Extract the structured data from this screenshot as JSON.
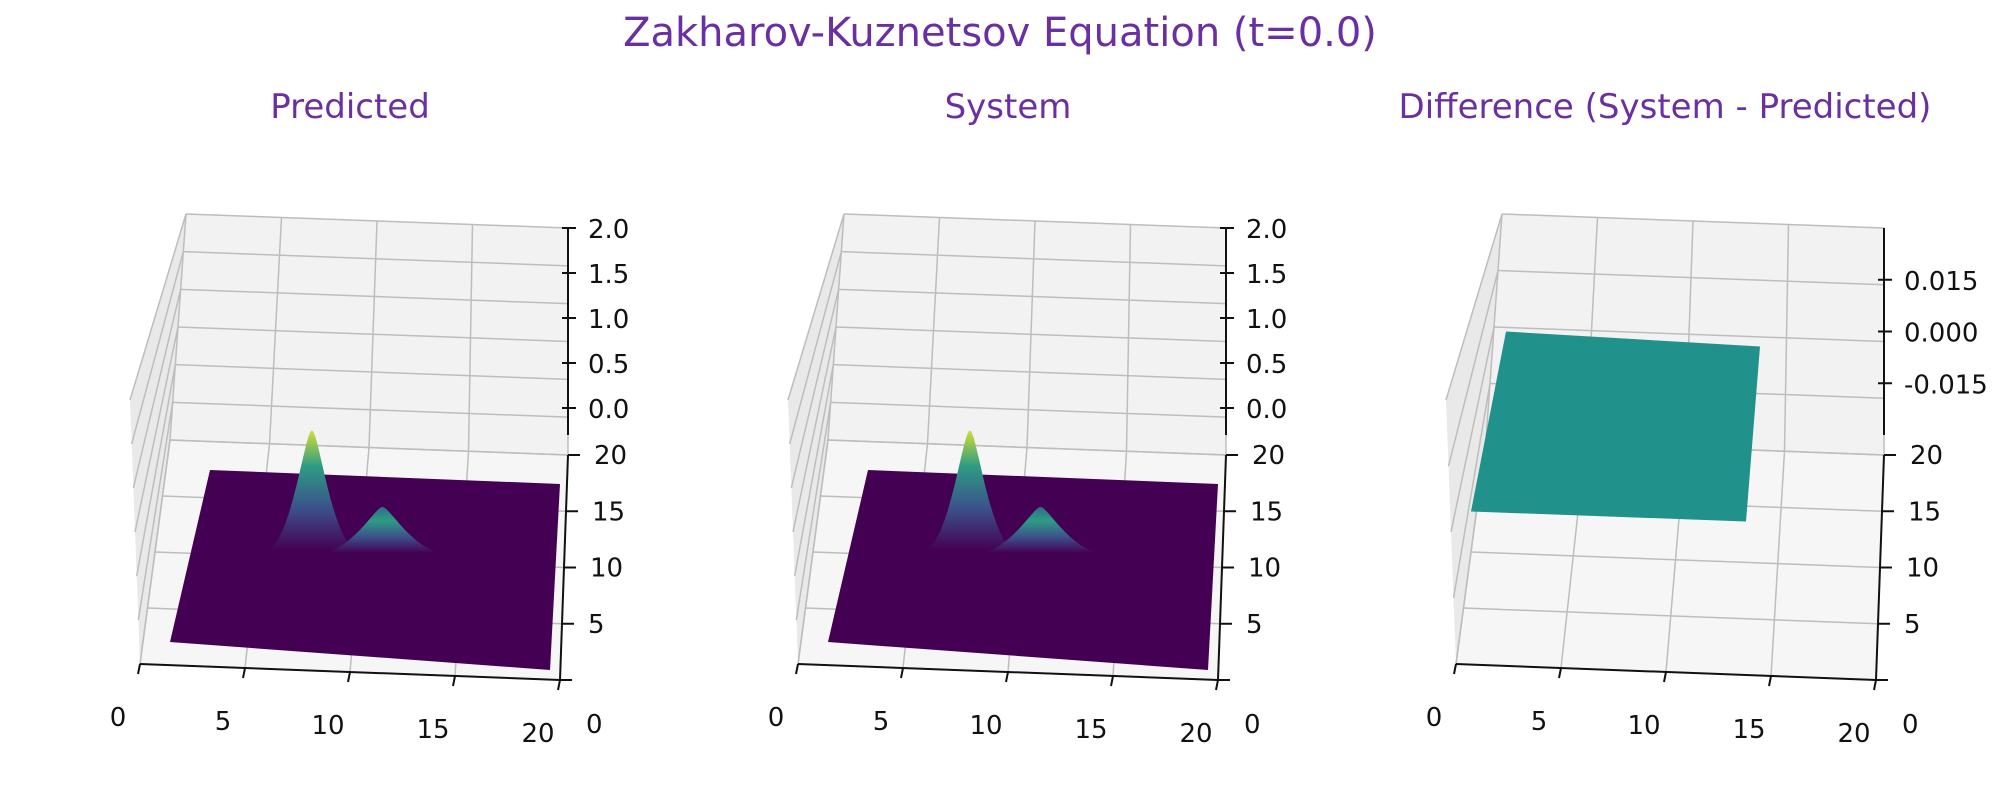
{
  "figure": {
    "title": "Zakharov-Kuznetsov Equation (t=0.0)"
  },
  "colors": {
    "title": "#6a2fa3",
    "pane": "#f2f2f2",
    "grid": "#bdbdbd",
    "surface_low": "#440154",
    "surface_mid": "#21918c",
    "surface_high": "#fde725"
  },
  "chart_data": [
    {
      "type": "surface3d",
      "title": "Predicted",
      "x_ticks": [
        "0",
        "5",
        "10",
        "15",
        "20"
      ],
      "y_ticks": [
        "0",
        "5",
        "10",
        "15",
        "20"
      ],
      "z_ticks": [
        "0.0",
        "0.5",
        "1.0",
        "1.5",
        "2.0"
      ],
      "xlim": [
        0,
        20
      ],
      "ylim": [
        0,
        20
      ],
      "zlim": [
        -0.3,
        2.0
      ],
      "colormap": "viridis",
      "surface": "two Gaussian peaks on a flat zero plane",
      "peaks": [
        {
          "x": 6,
          "y": 14,
          "height": 1.3
        },
        {
          "x": 10,
          "y": 14,
          "height": 0.5
        }
      ]
    },
    {
      "type": "surface3d",
      "title": "System",
      "x_ticks": [
        "0",
        "5",
        "10",
        "15",
        "20"
      ],
      "y_ticks": [
        "0",
        "5",
        "10",
        "15",
        "20"
      ],
      "z_ticks": [
        "0.0",
        "0.5",
        "1.0",
        "1.5",
        "2.0"
      ],
      "xlim": [
        0,
        20
      ],
      "ylim": [
        0,
        20
      ],
      "zlim": [
        -0.3,
        2.0
      ],
      "colormap": "viridis",
      "surface": "two Gaussian peaks on a flat zero plane",
      "peaks": [
        {
          "x": 6,
          "y": 14,
          "height": 1.3
        },
        {
          "x": 10,
          "y": 14,
          "height": 0.5
        }
      ]
    },
    {
      "type": "surface3d",
      "title": "Difference (System - Predicted)",
      "x_ticks": [
        "0",
        "5",
        "10",
        "15",
        "20"
      ],
      "y_ticks": [
        "0",
        "5",
        "10",
        "15",
        "20"
      ],
      "z_ticks": [
        "-0.015",
        "0.000",
        "0.015"
      ],
      "xlim": [
        0,
        20
      ],
      "ylim": [
        0,
        20
      ],
      "zlim": [
        -0.03,
        0.03
      ],
      "colormap": "viridis",
      "surface": "flat plane at 0.000",
      "value": 0.0
    }
  ]
}
